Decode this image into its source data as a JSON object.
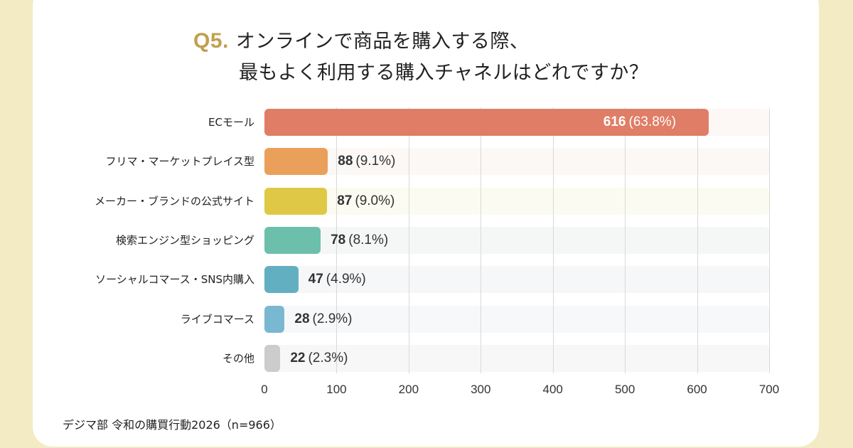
{
  "title": {
    "question_no": "Q5.",
    "line1": "オンラインで商品を購入する際、",
    "line2": "最もよく利用する購入チャネルはどれですか？"
  },
  "chart_data": {
    "type": "bar",
    "orientation": "horizontal",
    "title": "Q5. オンラインで商品を購入する際、最もよく利用する購入チャネルはどれですか？",
    "categories": [
      "ECモール",
      "フリマ・マーケットプレイス型",
      "メーカー・ブランドの公式サイト",
      "検索エンジン型ショッピング",
      "ソーシャルコマース・SNS内購入",
      "ライブコマース",
      "その他"
    ],
    "values": [
      616,
      88,
      87,
      78,
      47,
      28,
      22
    ],
    "percent_labels": [
      "(63.8%)",
      "(9.1%)",
      "(9.0%)",
      "(8.1%)",
      "(4.9%)",
      "(2.9%)",
      "(2.3%)"
    ],
    "colors": [
      "#e07d66",
      "#eaa05a",
      "#dfc845",
      "#6cc0ab",
      "#63afc2",
      "#7ab8d2",
      "#cccccc"
    ],
    "track_colors": [
      "#fdf7f5",
      "#fbf8f6",
      "#fcfbf1",
      "#f5f7f7",
      "#f5f7f8",
      "#f6f8fa",
      "#f7f7f7"
    ],
    "xlim": [
      0,
      700
    ],
    "xticks": [
      "0",
      "100",
      "200",
      "300",
      "400",
      "500",
      "600",
      "700"
    ],
    "xtick_values": [
      0,
      100,
      200,
      300,
      400,
      500,
      600,
      700
    ],
    "grid": true,
    "xlabel": "",
    "ylabel": ""
  },
  "source": "デジマ部 令和の購買行動2026（n=966）"
}
